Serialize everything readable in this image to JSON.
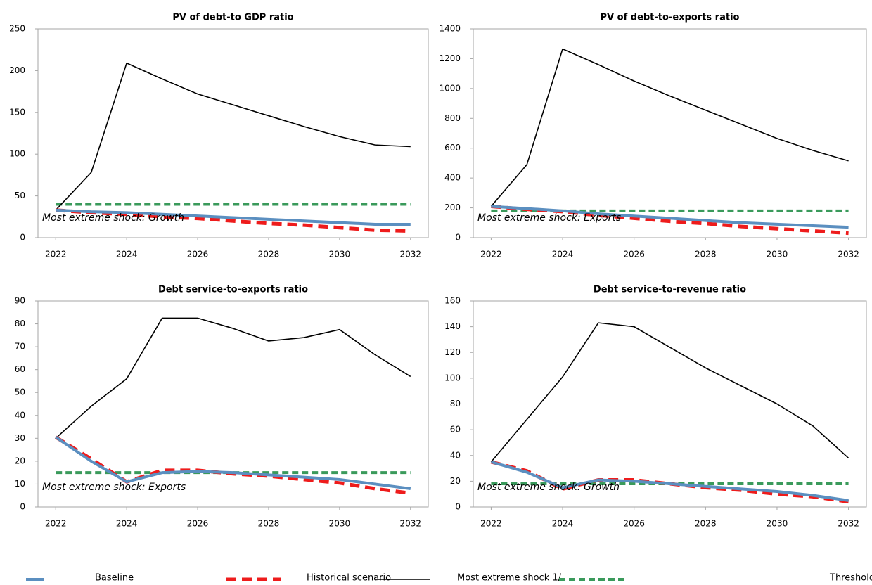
{
  "chart_data": [
    {
      "type": "line",
      "title": "PV of debt-to GDP ratio",
      "annotation": "Most extreme shock: Growth",
      "x": [
        2022,
        2023,
        2024,
        2025,
        2026,
        2027,
        2028,
        2029,
        2030,
        2031,
        2032
      ],
      "xlim": [
        2021.5,
        2032.5
      ],
      "xticks": [
        2022,
        2024,
        2026,
        2028,
        2030,
        2032
      ],
      "ylim": [
        0,
        250
      ],
      "yticks": [
        0,
        50,
        100,
        150,
        200,
        250
      ],
      "series": [
        {
          "name": "Baseline",
          "color": "#5b8fc0",
          "values": [
            33,
            31,
            30,
            28,
            26,
            24,
            22,
            20,
            18,
            16,
            16
          ]
        },
        {
          "name": "Historical scenario",
          "color": "#ee1c1c",
          "values": [
            33,
            30,
            28,
            25,
            23,
            20,
            17,
            15,
            12,
            9,
            8
          ]
        },
        {
          "name": "Most extreme shock 1/",
          "color": "#000000",
          "values": [
            33,
            78,
            209,
            190,
            172,
            159,
            146,
            133,
            121,
            111,
            109
          ]
        },
        {
          "name": "Threshold",
          "color": "#3a9a5b",
          "values": [
            40,
            40,
            40,
            40,
            40,
            40,
            40,
            40,
            40,
            40,
            40
          ]
        }
      ]
    },
    {
      "type": "line",
      "title": "PV of debt-to-exports ratio",
      "annotation": "Most extreme shock: Exports",
      "x": [
        2022,
        2023,
        2024,
        2025,
        2026,
        2027,
        2028,
        2029,
        2030,
        2031,
        2032
      ],
      "xlim": [
        2021.5,
        2032.5
      ],
      "xticks": [
        2022,
        2024,
        2026,
        2028,
        2030,
        2032
      ],
      "ylim": [
        0,
        1400
      ],
      "yticks": [
        0,
        200,
        400,
        600,
        800,
        1000,
        1200,
        1400
      ],
      "series": [
        {
          "name": "Baseline",
          "color": "#5b8fc0",
          "values": [
            210,
            195,
            180,
            160,
            145,
            130,
            115,
            100,
            90,
            80,
            70
          ]
        },
        {
          "name": "Historical scenario",
          "color": "#ee1c1c",
          "values": [
            210,
            190,
            175,
            150,
            130,
            110,
            95,
            75,
            60,
            45,
            30
          ]
        },
        {
          "name": "Most extreme shock 1/",
          "color": "#000000",
          "values": [
            210,
            490,
            1265,
            1160,
            1050,
            950,
            855,
            760,
            665,
            585,
            515
          ]
        },
        {
          "name": "Threshold",
          "color": "#3a9a5b",
          "values": [
            180,
            180,
            180,
            180,
            180,
            180,
            180,
            180,
            180,
            180,
            180
          ]
        }
      ]
    },
    {
      "type": "line",
      "title": "Debt service-to-exports ratio",
      "annotation": "Most extreme shock: Exports",
      "x": [
        2022,
        2023,
        2024,
        2025,
        2026,
        2027,
        2028,
        2029,
        2030,
        2031,
        2032
      ],
      "xlim": [
        2021.5,
        2032.5
      ],
      "xticks": [
        2022,
        2024,
        2026,
        2028,
        2030,
        2032
      ],
      "ylim": [
        0,
        90
      ],
      "yticks": [
        0,
        10,
        20,
        30,
        40,
        50,
        60,
        70,
        80,
        90
      ],
      "series": [
        {
          "name": "Baseline",
          "color": "#5b8fc0",
          "values": [
            30.5,
            20,
            11,
            15,
            15.5,
            15,
            14,
            13,
            12,
            10,
            8
          ]
        },
        {
          "name": "Historical scenario",
          "color": "#ee1c1c",
          "values": [
            30.5,
            21,
            11,
            16,
            16,
            14.5,
            13.5,
            12,
            10.5,
            8,
            6
          ]
        },
        {
          "name": "Most extreme shock 1/",
          "color": "#000000",
          "values": [
            30,
            44,
            56,
            82.5,
            82.5,
            78,
            72.5,
            74,
            77.5,
            66.5,
            57
          ]
        },
        {
          "name": "Threshold",
          "color": "#3a9a5b",
          "values": [
            15,
            15,
            15,
            15,
            15,
            15,
            15,
            15,
            15,
            15,
            15
          ]
        }
      ]
    },
    {
      "type": "line",
      "title": "Debt service-to-revenue ratio",
      "annotation": "Most extreme shock: Growth",
      "x": [
        2022,
        2023,
        2024,
        2025,
        2026,
        2027,
        2028,
        2029,
        2030,
        2031,
        2032
      ],
      "xlim": [
        2021.5,
        2032.5
      ],
      "xticks": [
        2022,
        2024,
        2026,
        2028,
        2030,
        2032
      ],
      "ylim": [
        0,
        160
      ],
      "yticks": [
        0,
        20,
        40,
        60,
        80,
        100,
        120,
        140,
        160
      ],
      "series": [
        {
          "name": "Baseline",
          "color": "#5b8fc0",
          "values": [
            35,
            27,
            15,
            21,
            20,
            18,
            16,
            14,
            12,
            9,
            5
          ]
        },
        {
          "name": "Historical scenario",
          "color": "#ee1c1c",
          "values": [
            35,
            28,
            14,
            21,
            21,
            18,
            15,
            13,
            10,
            8,
            4
          ]
        },
        {
          "name": "Most extreme shock 1/",
          "color": "#000000",
          "values": [
            35,
            68,
            101,
            143,
            140,
            124,
            108,
            94,
            80,
            63,
            38
          ]
        },
        {
          "name": "Threshold",
          "color": "#3a9a5b",
          "values": [
            18,
            18,
            18,
            18,
            18,
            18,
            18,
            18,
            18,
            18,
            18
          ]
        }
      ]
    }
  ]
}
